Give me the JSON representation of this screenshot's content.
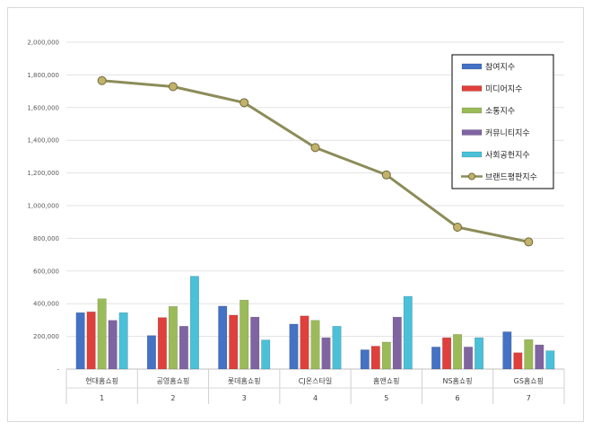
{
  "chart_data": {
    "type": "bar",
    "categories": [
      "현대홈쇼핑",
      "공영홈쇼핑",
      "롯데홈쇼핑",
      "CJ온스타일",
      "홈앤쇼핑",
      "NS홈쇼핑",
      "GS홈쇼핑"
    ],
    "category_numbers": [
      "1",
      "2",
      "3",
      "4",
      "5",
      "6",
      "7"
    ],
    "ylim": [
      0,
      2000000
    ],
    "yticks": [
      "-",
      "200,000",
      "400,000",
      "600,000",
      "800,000",
      "1,000,000",
      "1,200,000",
      "1,400,000",
      "1,600,000",
      "1,800,000",
      "2,000,000"
    ],
    "ytick_values": [
      0,
      200000,
      400000,
      600000,
      800000,
      1000000,
      1200000,
      1400000,
      1600000,
      1800000,
      2000000
    ],
    "grid": true,
    "legend_position": "top-right",
    "series": [
      {
        "name": "참여지수",
        "kind": "bar",
        "color": "#4472c4",
        "values": [
          345000,
          205000,
          385000,
          275000,
          118000,
          135000,
          228000
        ]
      },
      {
        "name": "미디어지수",
        "kind": "bar",
        "color": "#e0403c",
        "values": [
          350000,
          315000,
          330000,
          325000,
          140000,
          192000,
          100000
        ]
      },
      {
        "name": "소통지수",
        "kind": "bar",
        "color": "#9bbb59",
        "values": [
          430000,
          383000,
          422000,
          298000,
          165000,
          212000,
          180000
        ]
      },
      {
        "name": "커뮤니티지수",
        "kind": "bar",
        "color": "#8064a2",
        "values": [
          298000,
          262000,
          318000,
          192000,
          318000,
          135000,
          148000
        ]
      },
      {
        "name": "사회공헌지수",
        "kind": "bar",
        "color": "#4bc0d9",
        "values": [
          345000,
          568000,
          178000,
          262000,
          445000,
          192000,
          112000
        ]
      },
      {
        "name": "브랜드평판지수",
        "kind": "line",
        "color": "#8c8c5a",
        "marker_color": "#c2b26a",
        "values": [
          1765000,
          1728000,
          1630000,
          1355000,
          1188000,
          868000,
          778000
        ]
      }
    ]
  }
}
